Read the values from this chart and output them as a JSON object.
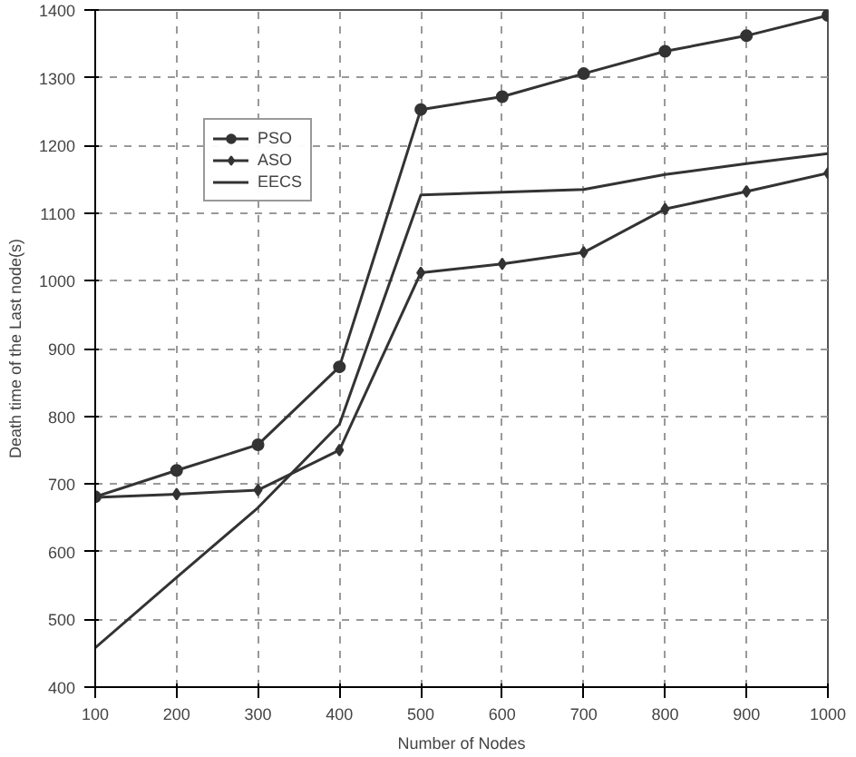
{
  "chart_data": {
    "type": "line",
    "xlabel": "Number of Nodes",
    "ylabel": "Death time of the Last node(s)",
    "x": [
      100,
      200,
      300,
      400,
      500,
      600,
      700,
      800,
      900,
      1000
    ],
    "series": [
      {
        "name": "PSO",
        "color": "#333333",
        "marker": "circle",
        "values": [
          681,
          720,
          758,
          873,
          1253,
          1272,
          1306,
          1339,
          1362,
          1392
        ]
      },
      {
        "name": "ASO",
        "color": "#333333",
        "marker": "diamond",
        "values": [
          680,
          685,
          691,
          750,
          1012,
          1025,
          1042,
          1106,
          1132,
          1159
        ]
      },
      {
        "name": "EECS",
        "color": "#333333",
        "marker": "none",
        "values": [
          458,
          562,
          665,
          788,
          1127,
          1131,
          1135,
          1157,
          1173,
          1188
        ]
      }
    ],
    "xlim": [
      100,
      1000
    ],
    "ylim": [
      400,
      1400
    ],
    "xticks": [
      100,
      200,
      300,
      400,
      500,
      600,
      700,
      800,
      900,
      1000
    ],
    "yticks": [
      400,
      500,
      600,
      700,
      800,
      900,
      1000,
      1100,
      1200,
      1300,
      1400
    ],
    "grid": true,
    "legend": "top left",
    "line_style": "solid"
  }
}
